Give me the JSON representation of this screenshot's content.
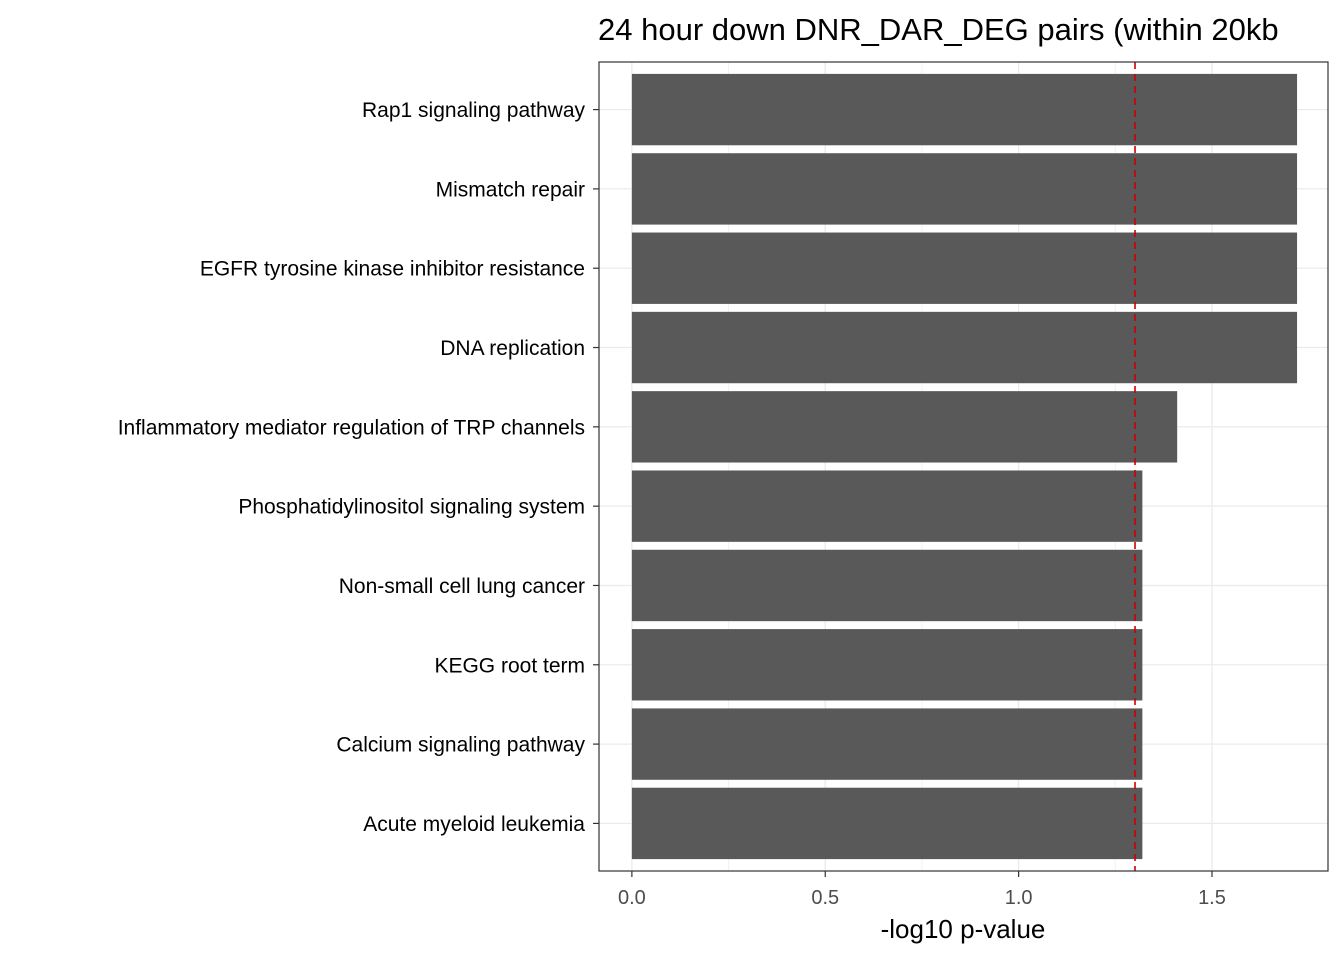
{
  "chart_data": {
    "type": "bar",
    "orientation": "horizontal",
    "title": "24 hour down DNR_DAR_DEG pairs (within 20kb",
    "xlabel": "-log10 p-value",
    "ylabel": "",
    "categories": [
      "Rap1 signaling pathway",
      "Mismatch repair",
      "EGFR tyrosine kinase inhibitor resistance",
      "DNA replication",
      "Inflammatory mediator regulation of TRP channels",
      "Phosphatidylinositol signaling system",
      "Non-small cell lung cancer",
      "KEGG root term",
      "Calcium signaling pathway",
      "Acute myeloid leukemia"
    ],
    "values": [
      1.72,
      1.72,
      1.72,
      1.72,
      1.41,
      1.32,
      1.32,
      1.32,
      1.32,
      1.32
    ],
    "xlim": [
      -0.085,
      1.8
    ],
    "xticks": [
      0.0,
      0.5,
      1.0,
      1.5
    ],
    "xtick_labels": [
      "0.0",
      "0.5",
      "1.0",
      "1.5"
    ],
    "reference_line": {
      "x": 1.301,
      "style": "dashed",
      "color": "#cc0000"
    },
    "bar_color": "#595959",
    "grid": true
  }
}
